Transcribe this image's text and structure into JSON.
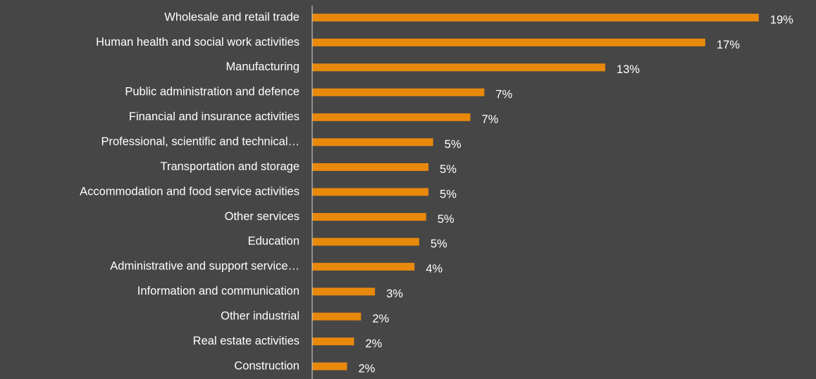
{
  "chart_data": {
    "type": "bar",
    "orientation": "horizontal",
    "categories": [
      "Wholesale and retail trade",
      "Human health and social work activities",
      "Manufacturing",
      "Public administration and defence",
      "Financial and insurance activities",
      "Professional, scientific and technical…",
      "Transportation and storage",
      "Accommodation and food service activities",
      "Other services",
      "Education",
      "Administrative and support service…",
      "Information and communication",
      "Other industrial",
      "Real estate activities",
      "Construction"
    ],
    "values": [
      19.2,
      16.9,
      12.6,
      7.4,
      6.8,
      5.2,
      5.0,
      5.0,
      4.9,
      4.6,
      4.4,
      2.7,
      2.1,
      1.8,
      1.5
    ],
    "value_labels": [
      "19%",
      "17%",
      "13%",
      "7%",
      "7%",
      "5%",
      "5%",
      "5%",
      "5%",
      "5%",
      "4%",
      "3%",
      "2%",
      "2%",
      "2%"
    ],
    "color": "#e8890c",
    "xlim": [
      0,
      21.6
    ]
  }
}
